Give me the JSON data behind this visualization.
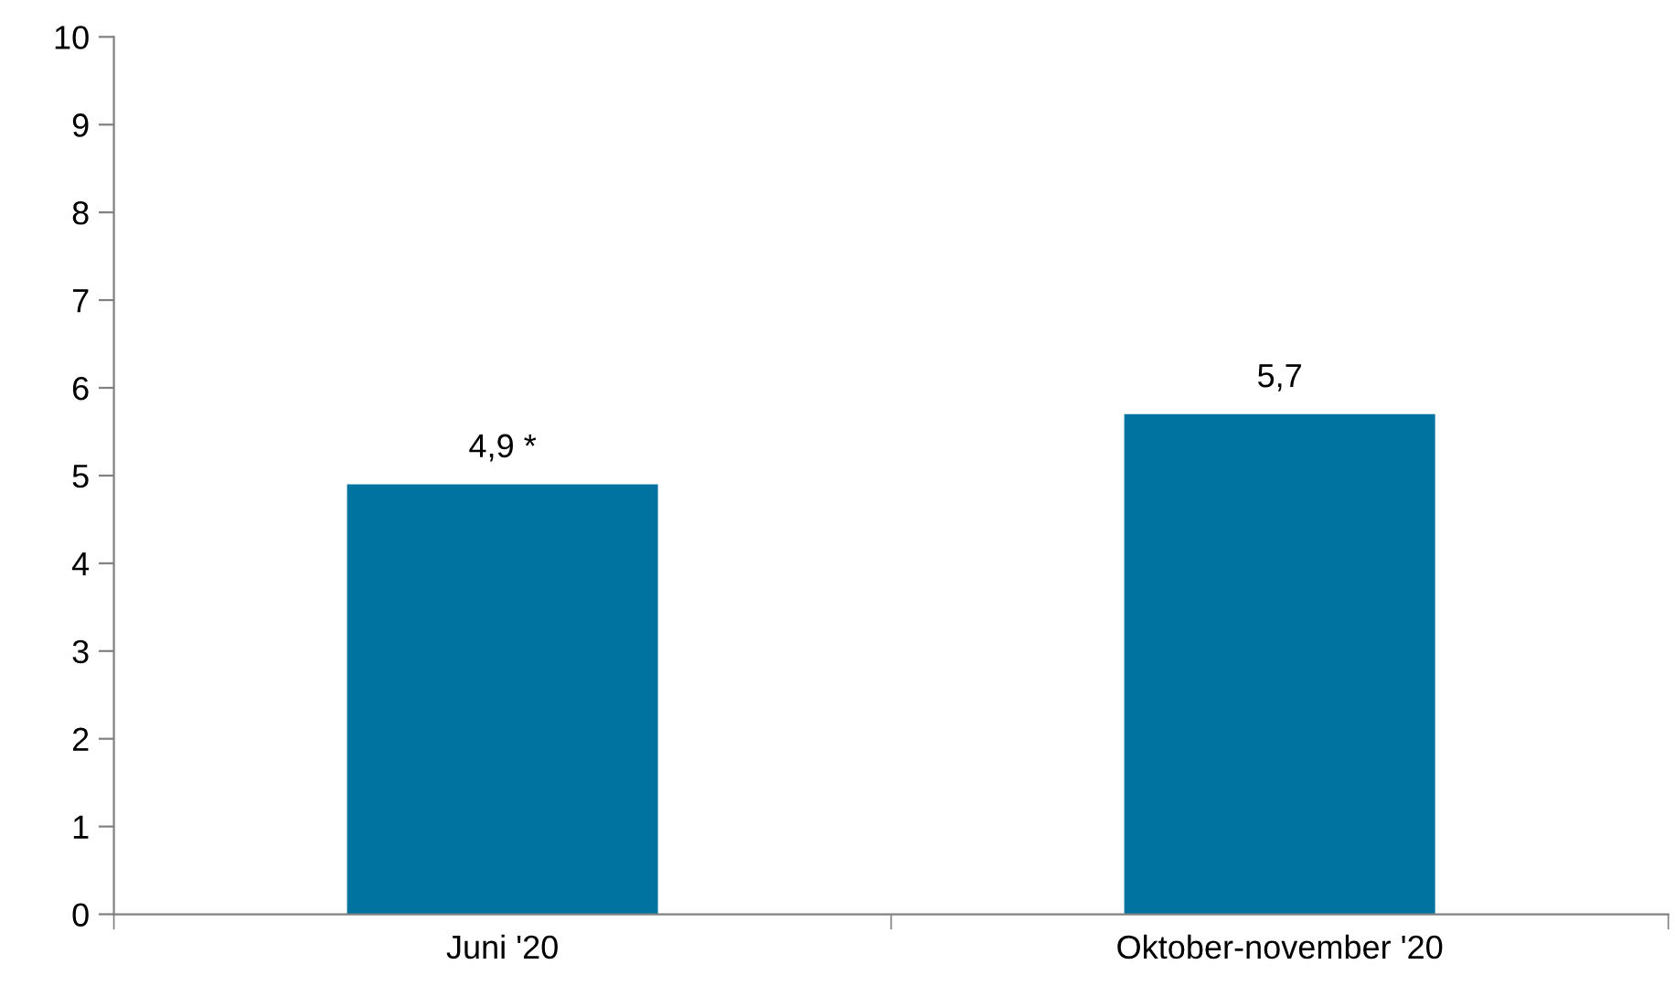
{
  "chart_data": {
    "type": "bar",
    "categories": [
      "Juni '20",
      "Oktober-november '20"
    ],
    "values": [
      4.9,
      5.7
    ],
    "value_labels": [
      "4,9 *",
      "5,7"
    ],
    "color": "#0073a0",
    "ylim": [
      0,
      10
    ],
    "yticks": [
      0,
      1,
      2,
      3,
      4,
      5,
      6,
      7,
      8,
      9,
      10
    ],
    "grid": false,
    "legend": false
  }
}
